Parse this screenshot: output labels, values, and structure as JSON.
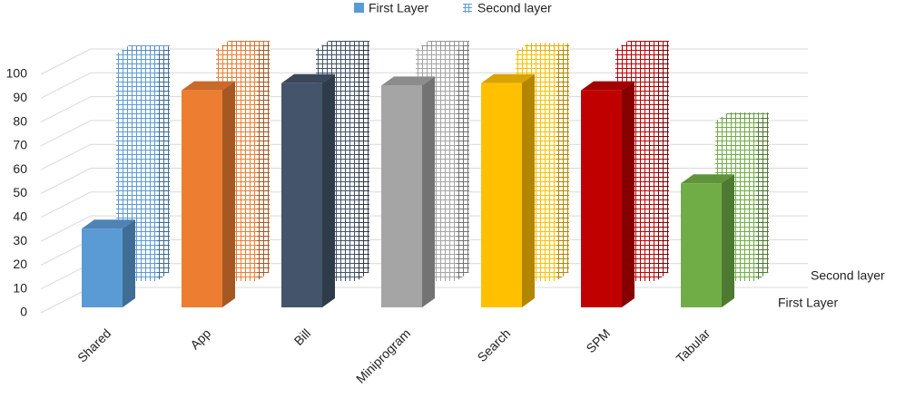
{
  "chart_data": {
    "type": "bar3d",
    "categories": [
      "Shared",
      "App",
      "Bill",
      "Miniprogram",
      "Search",
      "SPM",
      "Tabular"
    ],
    "series": [
      {
        "name": "First Layer",
        "style": "solid",
        "colors": [
          "#5b9bd5",
          "#ed7d31",
          "#44546a",
          "#a5a5a5",
          "#ffc000",
          "#c00000",
          "#70ad47"
        ],
        "values": [
          33,
          91,
          94,
          93,
          94,
          91,
          52
        ]
      },
      {
        "name": "Second layer",
        "style": "grid-pattern",
        "colors": [
          "#5b9bd5",
          "#ed7d31",
          "#44546a",
          "#a5a5a5",
          "#ffc000",
          "#c00000",
          "#70ad47"
        ],
        "values": [
          98,
          100,
          100,
          100,
          99,
          100,
          69
        ]
      }
    ],
    "ylim": [
      0,
      100
    ],
    "yticks": [
      0,
      10,
      20,
      30,
      40,
      50,
      60,
      70,
      80,
      90,
      100
    ],
    "grid": true
  }
}
